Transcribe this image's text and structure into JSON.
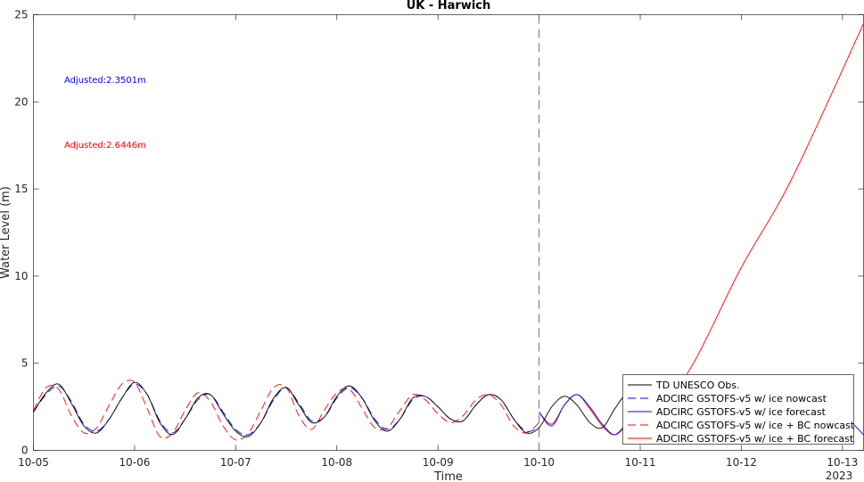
{
  "chart_data": {
    "type": "line",
    "title": "UK - Harwich",
    "xlabel": "Time",
    "ylabel": "Water Level (m)",
    "x_axis": {
      "start": "2023-10-05T00:00",
      "end": "2023-10-13T05:00",
      "tick_labels": [
        "10-05",
        "10-06",
        "10-07",
        "10-08",
        "10-09",
        "10-10",
        "10-11",
        "10-12",
        "10-13"
      ],
      "year_label": "2023"
    },
    "ylim": [
      0,
      25
    ],
    "yticks": [
      0,
      5,
      10,
      15,
      20,
      25
    ],
    "grid": false,
    "nowcast_forecast_divider": "2023-10-10T00:00",
    "annotations": [
      {
        "text": "Adjusted:2.3501m",
        "color": "#0000ff"
      },
      {
        "text": "Adjusted:2.6446m",
        "color": "#ff0000"
      }
    ],
    "legend_position": "bottom-right",
    "series": [
      {
        "name": "TD UNESCO Obs.",
        "color": "#000000",
        "dash": "solid",
        "x": [
          "2023-10-05T00:00",
          "2023-10-05T03:00",
          "2023-10-05T06:00",
          "2023-10-05T09:00",
          "2023-10-05T12:00",
          "2023-10-05T15:00",
          "2023-10-05T18:00",
          "2023-10-05T21:00",
          "2023-10-06T00:00",
          "2023-10-06T03:00",
          "2023-10-06T06:00",
          "2023-10-06T09:00",
          "2023-10-06T12:00",
          "2023-10-06T15:00",
          "2023-10-06T18:00",
          "2023-10-06T21:00",
          "2023-10-07T00:00",
          "2023-10-07T03:00",
          "2023-10-07T06:00",
          "2023-10-07T09:00",
          "2023-10-07T12:00",
          "2023-10-07T15:00",
          "2023-10-07T18:00",
          "2023-10-07T21:00",
          "2023-10-08T00:00",
          "2023-10-08T03:00",
          "2023-10-08T06:00",
          "2023-10-08T09:00",
          "2023-10-08T12:00",
          "2023-10-08T15:00",
          "2023-10-08T18:00",
          "2023-10-08T21:00",
          "2023-10-09T00:00",
          "2023-10-09T03:00",
          "2023-10-09T06:00",
          "2023-10-09T09:00",
          "2023-10-09T12:00",
          "2023-10-09T15:00",
          "2023-10-09T18:00",
          "2023-10-09T21:00",
          "2023-10-10T00:00",
          "2023-10-10T03:00",
          "2023-10-10T06:00",
          "2023-10-10T09:00",
          "2023-10-10T12:00",
          "2023-10-10T15:00",
          "2023-10-10T18:00",
          "2023-10-10T21:00",
          "2023-10-11T00:00"
        ],
        "y": [
          2.2,
          3.3,
          3.8,
          2.7,
          1.4,
          1.0,
          1.8,
          3.0,
          3.9,
          3.2,
          1.6,
          0.9,
          1.8,
          3.0,
          3.2,
          2.1,
          1.1,
          0.8,
          1.6,
          3.0,
          3.6,
          2.6,
          1.6,
          1.9,
          3.1,
          3.7,
          3.0,
          1.7,
          1.1,
          1.8,
          3.0,
          3.1,
          2.5,
          1.8,
          1.7,
          2.6,
          3.2,
          2.9,
          1.8,
          1.0,
          1.3,
          2.5,
          3.1,
          2.6,
          1.6,
          1.3,
          2.4,
          3.3,
          3.2
        ]
      },
      {
        "name": "ADCIRC GSTOFS-v5 w/ ice nowcast",
        "color": "#0000ff",
        "dash": "dashed",
        "x": [
          "2023-10-05T00:00",
          "2023-10-05T03:00",
          "2023-10-05T06:00",
          "2023-10-05T09:00",
          "2023-10-05T12:00",
          "2023-10-05T15:00",
          "2023-10-05T18:00",
          "2023-10-05T21:00",
          "2023-10-06T00:00",
          "2023-10-06T03:00",
          "2023-10-06T06:00",
          "2023-10-06T09:00",
          "2023-10-06T12:00",
          "2023-10-06T15:00",
          "2023-10-06T18:00",
          "2023-10-06T21:00",
          "2023-10-07T00:00",
          "2023-10-07T03:00",
          "2023-10-07T06:00",
          "2023-10-07T09:00",
          "2023-10-07T12:00",
          "2023-10-07T15:00",
          "2023-10-07T18:00",
          "2023-10-07T21:00",
          "2023-10-08T00:00",
          "2023-10-08T03:00",
          "2023-10-08T06:00",
          "2023-10-08T09:00",
          "2023-10-08T12:00",
          "2023-10-08T15:00",
          "2023-10-08T18:00",
          "2023-10-08T21:00",
          "2023-10-09T00:00",
          "2023-10-09T03:00",
          "2023-10-09T06:00",
          "2023-10-09T09:00",
          "2023-10-09T12:00",
          "2023-10-09T15:00",
          "2023-10-09T18:00",
          "2023-10-09T21:00",
          "2023-10-10T00:00"
        ],
        "y": [
          2.2,
          3.2,
          3.7,
          2.8,
          1.5,
          1.1,
          1.8,
          3.0,
          3.8,
          3.2,
          1.7,
          1.0,
          1.8,
          2.9,
          3.2,
          2.2,
          1.2,
          0.9,
          1.6,
          2.9,
          3.6,
          2.7,
          1.7,
          1.9,
          3.0,
          3.6,
          3.0,
          1.8,
          1.2,
          1.8,
          2.9,
          3.1,
          2.5,
          1.8,
          1.7,
          2.6,
          3.2,
          2.9,
          1.8,
          1.1,
          1.3
        ]
      },
      {
        "name": "ADCIRC GSTOFS-v5 w/ ice forecast",
        "color": "#0000ff",
        "dash": "solid",
        "x": [
          "2023-10-10T00:00",
          "2023-10-10T03:00",
          "2023-10-10T06:00",
          "2023-10-10T09:00",
          "2023-10-10T12:00",
          "2023-10-10T15:00",
          "2023-10-10T18:00",
          "2023-10-10T21:00",
          "2023-10-11T00:00",
          "2023-10-11T03:00",
          "2023-10-11T06:00",
          "2023-10-11T09:00",
          "2023-10-11T12:00",
          "2023-10-11T15:00",
          "2023-10-11T18:00",
          "2023-10-11T21:00",
          "2023-10-12T00:00",
          "2023-10-12T03:00",
          "2023-10-12T06:00",
          "2023-10-12T09:00",
          "2023-10-12T12:00",
          "2023-10-12T15:00",
          "2023-10-12T18:00",
          "2023-10-12T21:00",
          "2023-10-13T00:00",
          "2023-10-13T03:00",
          "2023-10-13T05:00"
        ],
        "y": [
          2.2,
          1.4,
          2.6,
          3.2,
          2.5,
          1.5,
          0.9,
          1.6,
          2.8,
          3.1,
          2.3,
          1.4,
          1.2,
          2.3,
          3.3,
          3.0,
          1.9,
          1.1,
          1.5,
          2.7,
          3.3,
          2.6,
          1.6,
          1.3,
          2.2,
          1.4,
          0.9
        ]
      },
      {
        "name": "ADCIRC GSTOFS-v5 w/ ice + BC nowcast",
        "color": "#ff0000",
        "dash": "dashed",
        "x": [
          "2023-10-05T00:00",
          "2023-10-05T03:00",
          "2023-10-05T06:00",
          "2023-10-05T09:00",
          "2023-10-05T12:00",
          "2023-10-05T15:00",
          "2023-10-05T18:00",
          "2023-10-05T21:00",
          "2023-10-06T00:00",
          "2023-10-06T03:00",
          "2023-10-06T06:00",
          "2023-10-06T09:00",
          "2023-10-06T12:00",
          "2023-10-06T15:00",
          "2023-10-06T18:00",
          "2023-10-06T21:00",
          "2023-10-07T00:00",
          "2023-10-07T03:00",
          "2023-10-07T06:00",
          "2023-10-07T09:00",
          "2023-10-07T12:00",
          "2023-10-07T15:00",
          "2023-10-07T18:00",
          "2023-10-07T21:00",
          "2023-10-08T00:00",
          "2023-10-08T03:00",
          "2023-10-08T06:00",
          "2023-10-08T09:00",
          "2023-10-08T12:00",
          "2023-10-08T15:00",
          "2023-10-08T18:00",
          "2023-10-08T21:00",
          "2023-10-09T00:00",
          "2023-10-09T03:00",
          "2023-10-09T06:00",
          "2023-10-09T09:00",
          "2023-10-09T12:00",
          "2023-10-09T15:00",
          "2023-10-09T18:00",
          "2023-10-09T21:00",
          "2023-10-10T00:00"
        ],
        "y": [
          2.3,
          3.6,
          3.5,
          2.0,
          1.0,
          1.3,
          2.6,
          3.8,
          3.9,
          2.4,
          0.8,
          1.0,
          2.3,
          3.3,
          2.8,
          1.4,
          0.6,
          1.0,
          2.3,
          3.6,
          3.6,
          2.0,
          1.2,
          2.3,
          3.3,
          3.5,
          2.4,
          1.3,
          1.3,
          2.3,
          3.2,
          2.9,
          2.1,
          1.6,
          2.0,
          2.9,
          3.2,
          2.6,
          1.4,
          1.0,
          1.6
        ]
      },
      {
        "name": "ADCIRC GSTOFS-v5 w/ ice + BC forecast",
        "color": "#ff0000",
        "dash": "solid",
        "x": [
          "2023-10-10T00:00",
          "2023-10-10T03:00",
          "2023-10-10T06:00",
          "2023-10-10T09:00",
          "2023-10-10T12:00",
          "2023-10-10T15:00",
          "2023-10-10T18:00",
          "2023-10-10T21:00",
          "2023-10-11T00:00",
          "2023-10-11T10:00",
          "2023-10-12T00:00",
          "2023-10-12T12:00",
          "2023-10-13T05:00"
        ],
        "y": [
          2.2,
          1.5,
          2.6,
          3.2,
          2.4,
          1.4,
          0.9,
          1.7,
          2.9,
          4.0,
          10.5,
          15.6,
          24.5
        ]
      }
    ]
  }
}
